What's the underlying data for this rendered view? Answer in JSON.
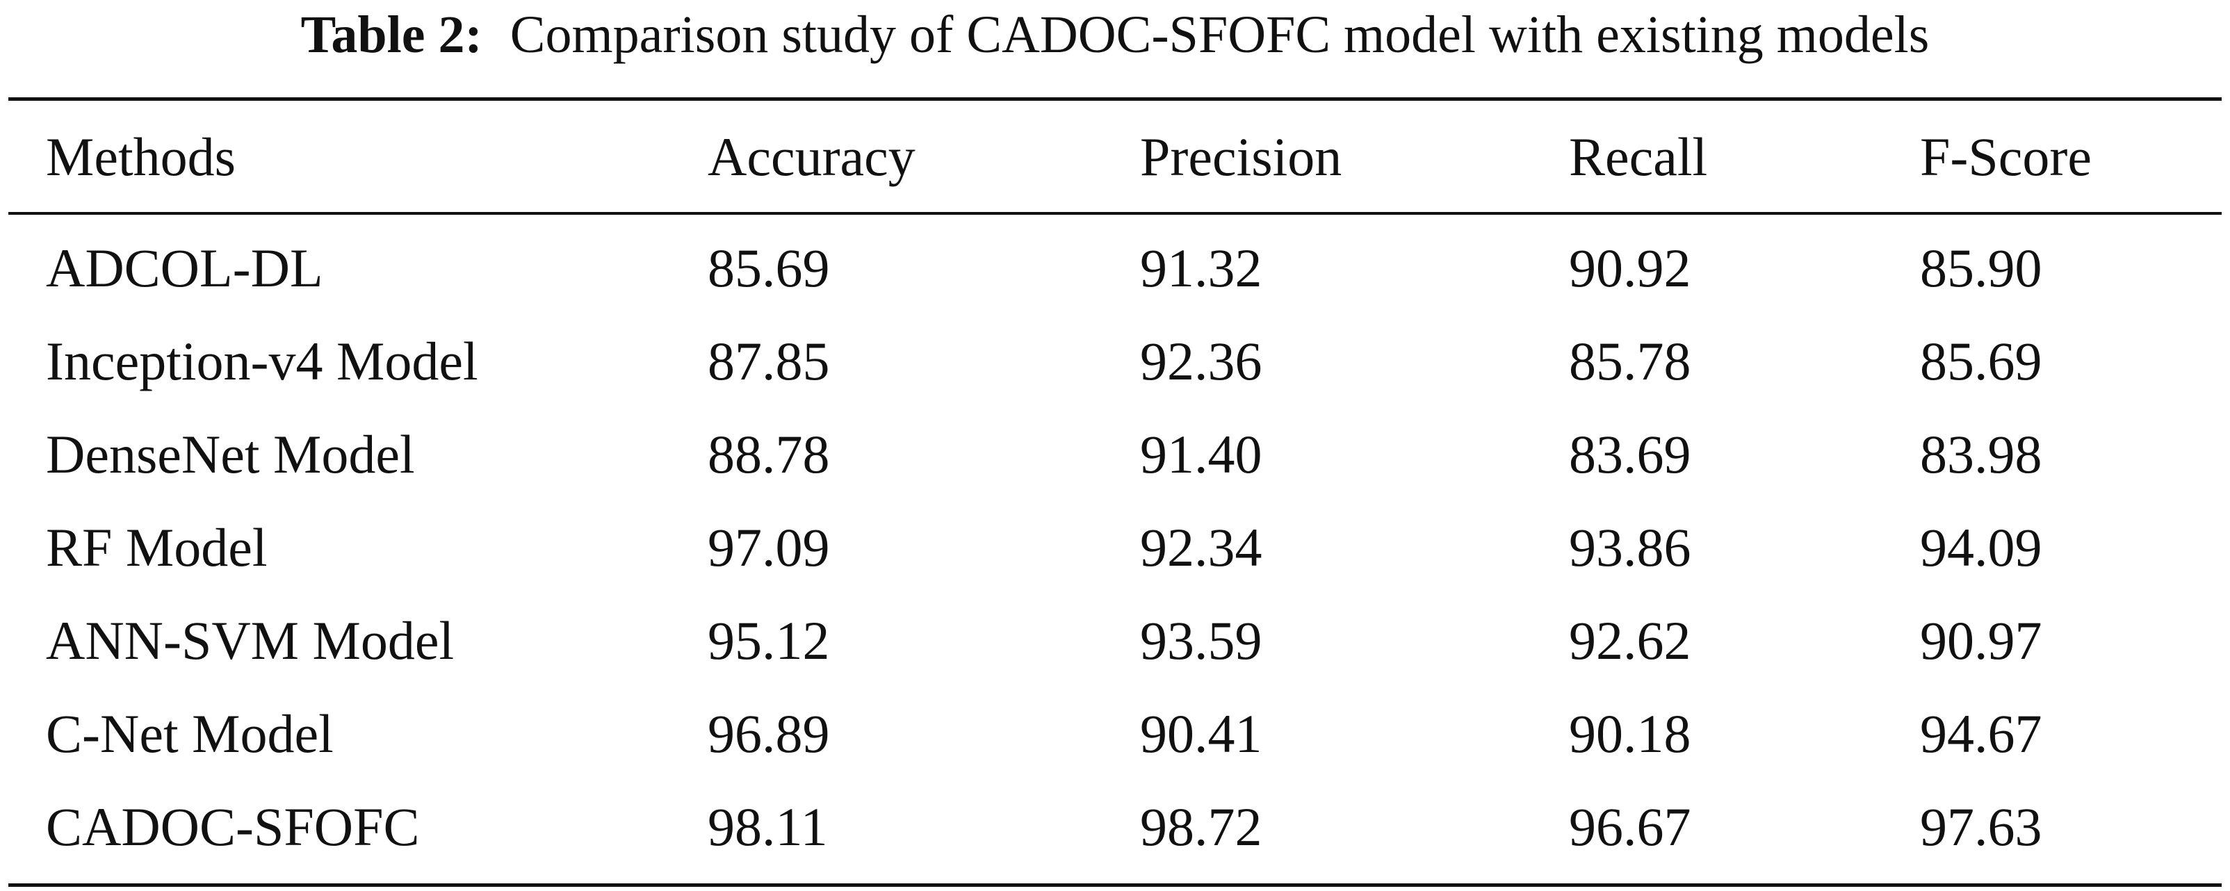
{
  "caption": {
    "label": "Table 2:",
    "text": "Comparison study of CADOC-SFOFC model with existing models"
  },
  "table": {
    "headers": [
      "Methods",
      "Accuracy",
      "Precision",
      "Recall",
      "F-Score"
    ],
    "rows": [
      [
        "ADCOL-DL",
        "85.69",
        "91.32",
        "90.92",
        "85.90"
      ],
      [
        "Inception-v4 Model",
        "87.85",
        "92.36",
        "85.78",
        "85.69"
      ],
      [
        "DenseNet Model",
        "88.78",
        "91.40",
        "83.69",
        "83.98"
      ],
      [
        "RF Model",
        "97.09",
        "92.34",
        "93.86",
        "94.09"
      ],
      [
        "ANN-SVM Model",
        "95.12",
        "93.59",
        "92.62",
        "90.97"
      ],
      [
        "C-Net Model",
        "96.89",
        "90.41",
        "90.18",
        "94.67"
      ],
      [
        "CADOC-SFOFC",
        "98.11",
        "98.72",
        "96.67",
        "97.63"
      ]
    ]
  }
}
